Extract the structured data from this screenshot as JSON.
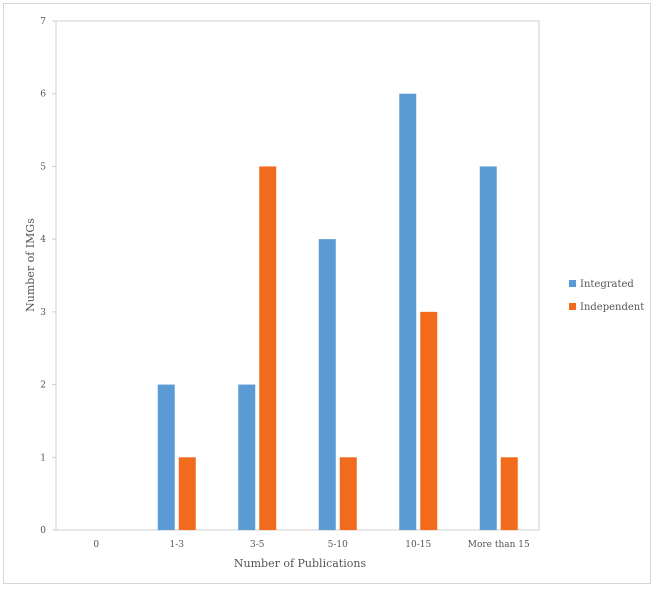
{
  "chart_data": {
    "type": "bar",
    "title": "",
    "xlabel": "Number of Publications",
    "ylabel": "Number of IMGs",
    "categories": [
      "0",
      "1-3",
      "3-5",
      "5-10",
      "10-15",
      "More than 15"
    ],
    "series": [
      {
        "name": "Integrated",
        "color": "#5b9bd5",
        "values": [
          0,
          2,
          2,
          4,
          6,
          5
        ]
      },
      {
        "name": "Independent",
        "color": "#f26b1d",
        "values": [
          0,
          1,
          5,
          1,
          3,
          1
        ]
      }
    ],
    "ylim": [
      0,
      7
    ],
    "yticks": [
      "0",
      "1",
      "2",
      "3",
      "4",
      "5",
      "6",
      "7"
    ],
    "grid": false,
    "legend_position": "right"
  }
}
